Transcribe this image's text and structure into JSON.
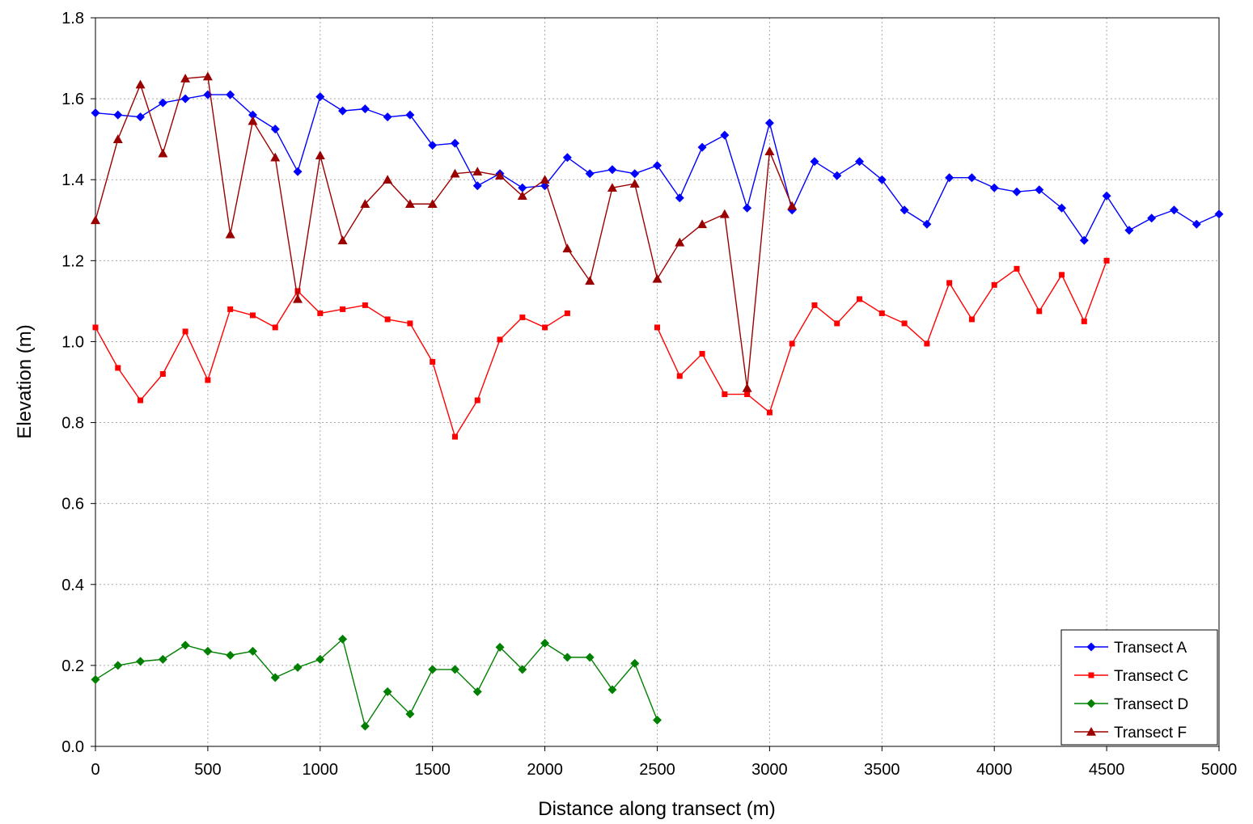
{
  "chart_data": {
    "type": "line",
    "title": "",
    "xlabel": "Distance along transect (m)",
    "ylabel": "Elevation (m)",
    "xlim": [
      0,
      5000
    ],
    "ylim": [
      0.0,
      1.8
    ],
    "xticks": [
      "0",
      "500",
      "1000",
      "1500",
      "2000",
      "2500",
      "3000",
      "3500",
      "4000",
      "4500",
      "5000"
    ],
    "yticks": [
      "0.0",
      "0.2",
      "0.4",
      "0.6",
      "0.8",
      "1.0",
      "1.2",
      "1.4",
      "1.6",
      "1.8"
    ],
    "grid": true,
    "legend_position": "bottom-right",
    "series": [
      {
        "name": "Transect A",
        "color": "#0000ff",
        "marker": "diamond",
        "points": [
          [
            0,
            1.565
          ],
          [
            100,
            1.56
          ],
          [
            200,
            1.555
          ],
          [
            300,
            1.59
          ],
          [
            400,
            1.6
          ],
          [
            500,
            1.61
          ],
          [
            600,
            1.61
          ],
          [
            700,
            1.56
          ],
          [
            800,
            1.525
          ],
          [
            900,
            1.42
          ],
          [
            1000,
            1.605
          ],
          [
            1100,
            1.57
          ],
          [
            1200,
            1.575
          ],
          [
            1300,
            1.555
          ],
          [
            1400,
            1.56
          ],
          [
            1500,
            1.485
          ],
          [
            1600,
            1.49
          ],
          [
            1700,
            1.385
          ],
          [
            1800,
            1.415
          ],
          [
            1900,
            1.38
          ],
          [
            2000,
            1.385
          ],
          [
            2100,
            1.455
          ],
          [
            2200,
            1.415
          ],
          [
            2300,
            1.425
          ],
          [
            2400,
            1.415
          ],
          [
            2500,
            1.435
          ],
          [
            2600,
            1.355
          ],
          [
            2700,
            1.48
          ],
          [
            2800,
            1.51
          ],
          [
            2900,
            1.33
          ],
          [
            3000,
            1.54
          ],
          [
            3100,
            1.325
          ],
          [
            3200,
            1.445
          ],
          [
            3300,
            1.41
          ],
          [
            3400,
            1.445
          ],
          [
            3500,
            1.4
          ],
          [
            3600,
            1.325
          ],
          [
            3700,
            1.29
          ],
          [
            3800,
            1.405
          ],
          [
            3900,
            1.405
          ],
          [
            4000,
            1.38
          ],
          [
            4100,
            1.37
          ],
          [
            4200,
            1.375
          ],
          [
            4300,
            1.33
          ],
          [
            4400,
            1.25
          ],
          [
            4500,
            1.36
          ],
          [
            4600,
            1.275
          ],
          [
            4700,
            1.305
          ],
          [
            4800,
            1.325
          ],
          [
            4900,
            1.29
          ],
          [
            5000,
            1.315
          ]
        ]
      },
      {
        "name": "Transect C",
        "color": "#ff0000",
        "marker": "square",
        "points": [
          [
            0,
            1.035
          ],
          [
            100,
            0.935
          ],
          [
            200,
            0.855
          ],
          [
            300,
            0.92
          ],
          [
            400,
            1.025
          ],
          [
            500,
            0.905
          ],
          [
            600,
            1.08
          ],
          [
            700,
            1.065
          ],
          [
            800,
            1.035
          ],
          [
            900,
            1.125
          ],
          [
            1000,
            1.07
          ],
          [
            1100,
            1.08
          ],
          [
            1200,
            1.09
          ],
          [
            1300,
            1.055
          ],
          [
            1400,
            1.045
          ],
          [
            1500,
            0.95
          ],
          [
            1600,
            0.765
          ],
          [
            1700,
            0.855
          ],
          [
            1800,
            1.005
          ],
          [
            1900,
            1.06
          ],
          [
            2000,
            1.035
          ],
          [
            2100,
            1.07
          ],
          null,
          null,
          null,
          [
            2500,
            1.035
          ],
          [
            2600,
            0.915
          ],
          [
            2700,
            0.97
          ],
          [
            2800,
            0.87
          ],
          [
            2900,
            0.87
          ],
          [
            3000,
            0.825
          ],
          [
            3100,
            0.995
          ],
          [
            3200,
            1.09
          ],
          [
            3300,
            1.045
          ],
          [
            3400,
            1.105
          ],
          [
            3500,
            1.07
          ],
          [
            3600,
            1.045
          ],
          [
            3700,
            0.995
          ],
          [
            3800,
            1.145
          ],
          [
            3900,
            1.055
          ],
          [
            4000,
            1.14
          ],
          [
            4100,
            1.18
          ],
          [
            4200,
            1.075
          ],
          [
            4300,
            1.165
          ],
          [
            4400,
            1.05
          ],
          [
            4500,
            1.2
          ]
        ]
      },
      {
        "name": "Transect D",
        "color": "#008000",
        "marker": "diamond",
        "points": [
          [
            0,
            0.165
          ],
          [
            100,
            0.2
          ],
          [
            200,
            0.21
          ],
          [
            300,
            0.215
          ],
          [
            400,
            0.25
          ],
          [
            500,
            0.235
          ],
          [
            600,
            0.225
          ],
          [
            700,
            0.235
          ],
          [
            800,
            0.17
          ],
          [
            900,
            0.195
          ],
          [
            1000,
            0.215
          ],
          [
            1100,
            0.265
          ],
          [
            1200,
            0.05
          ],
          [
            1300,
            0.135
          ],
          [
            1400,
            0.08
          ],
          [
            1500,
            0.19
          ],
          [
            1600,
            0.19
          ],
          [
            1700,
            0.135
          ],
          [
            1800,
            0.245
          ],
          [
            1900,
            0.19
          ],
          [
            2000,
            0.255
          ],
          [
            2100,
            0.22
          ],
          [
            2200,
            0.22
          ],
          [
            2300,
            0.14
          ],
          [
            2400,
            0.205
          ],
          [
            2500,
            0.065
          ]
        ]
      },
      {
        "name": " Transect F",
        "color": "#9b0000",
        "marker": "triangle",
        "points": [
          [
            0,
            1.3
          ],
          [
            100,
            1.5
          ],
          [
            200,
            1.635
          ],
          [
            300,
            1.465
          ],
          [
            400,
            1.65
          ],
          [
            500,
            1.655
          ],
          [
            600,
            1.265
          ],
          [
            700,
            1.545
          ],
          [
            800,
            1.455
          ],
          [
            900,
            1.105
          ],
          [
            1000,
            1.46
          ],
          [
            1100,
            1.25
          ],
          [
            1200,
            1.34
          ],
          [
            1300,
            1.4
          ],
          [
            1400,
            1.34
          ],
          [
            1500,
            1.34
          ],
          [
            1600,
            1.415
          ],
          [
            1700,
            1.42
          ],
          [
            1800,
            1.41
          ],
          [
            1900,
            1.36
          ],
          [
            2000,
            1.4
          ],
          [
            2100,
            1.23
          ],
          [
            2200,
            1.15
          ],
          [
            2300,
            1.38
          ],
          [
            2400,
            1.39
          ],
          [
            2500,
            1.155
          ],
          [
            2600,
            1.245
          ],
          [
            2700,
            1.29
          ],
          [
            2800,
            1.315
          ],
          [
            2900,
            0.885
          ],
          [
            3000,
            1.47
          ],
          [
            3100,
            1.335
          ]
        ]
      }
    ]
  }
}
